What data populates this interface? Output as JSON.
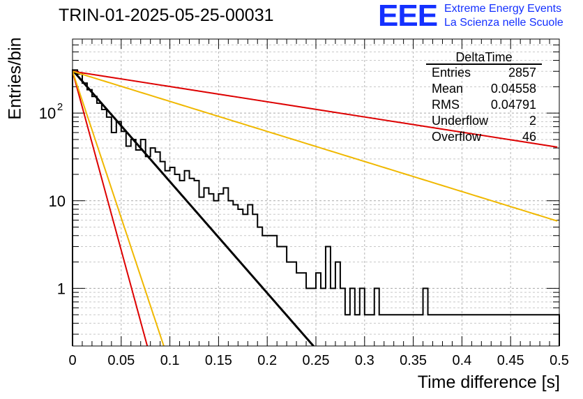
{
  "title": "TRIN-01-2025-05-25-00031",
  "logo": {
    "mark": "EEE",
    "line1": "Extreme Energy Events",
    "line2": "La Scienza nelle Scuole"
  },
  "stats": {
    "name": "DeltaTime",
    "rows": [
      {
        "label": "Entries",
        "value": "2857"
      },
      {
        "label": "Mean",
        "value": "0.04558"
      },
      {
        "label": "RMS",
        "value": "0.04791"
      },
      {
        "label": "Underflow",
        "value": "2"
      },
      {
        "label": "Overflow",
        "value": "46"
      }
    ]
  },
  "chart_data": {
    "type": "bar",
    "xlabel": "Time difference [s]",
    "ylabel": "Entries/bin",
    "xlim": [
      0,
      0.5
    ],
    "ylim": [
      0.22,
      700
    ],
    "log_y": true,
    "grid": true,
    "x_ticks": [
      "0",
      "0.05",
      "0.1",
      "0.15",
      "0.2",
      "0.25",
      "0.3",
      "0.35",
      "0.4",
      "0.45",
      "0.5"
    ],
    "y_ticks": [
      {
        "value": 1,
        "label": "1"
      },
      {
        "value": 10,
        "label": "10"
      },
      {
        "value": 100,
        "label": "10^2"
      }
    ],
    "bin_width": 0.005,
    "histogram": [
      310,
      280,
      220,
      185,
      155,
      130,
      110,
      90,
      60,
      80,
      62,
      42,
      50,
      38,
      50,
      32,
      40,
      36,
      28,
      22,
      24,
      20,
      17,
      22,
      18,
      17,
      11,
      14,
      12,
      10,
      12,
      14,
      10,
      9,
      8,
      7,
      9,
      7,
      5,
      4,
      4,
      4,
      3,
      3,
      2,
      2,
      1.5,
      1.5,
      1,
      1,
      1.5,
      1,
      3,
      1,
      2,
      1,
      0.5,
      1,
      0.5,
      1,
      0.5,
      0.5,
      1,
      0.5,
      0.5,
      0.5,
      0.5,
      0.5,
      0.5,
      0.5,
      0.5,
      0.5,
      1,
      0.5,
      0.5,
      0.5,
      0.5,
      0.5,
      0.5,
      0.5,
      0.5,
      0.5,
      0.5,
      0.5,
      0.5,
      0.5,
      0.5,
      0.5,
      0.5,
      0.5,
      0.5,
      0.5,
      0.5,
      0.5,
      0.5,
      0.5,
      0.5,
      0.5,
      0.5,
      0.5
    ],
    "fit_lines": [
      {
        "color": "#000000",
        "y0": 310,
        "slope_per_s": -29.3
      },
      {
        "color": "#dd0000",
        "y0": 300,
        "slope_per_s": -4.0
      },
      {
        "color": "#dd0000",
        "y0": 300,
        "slope_per_s": -94.0
      },
      {
        "color": "#f0b800",
        "y0": 300,
        "slope_per_s": -7.9
      },
      {
        "color": "#f0b800",
        "y0": 300,
        "slope_per_s": -77.0
      }
    ]
  }
}
